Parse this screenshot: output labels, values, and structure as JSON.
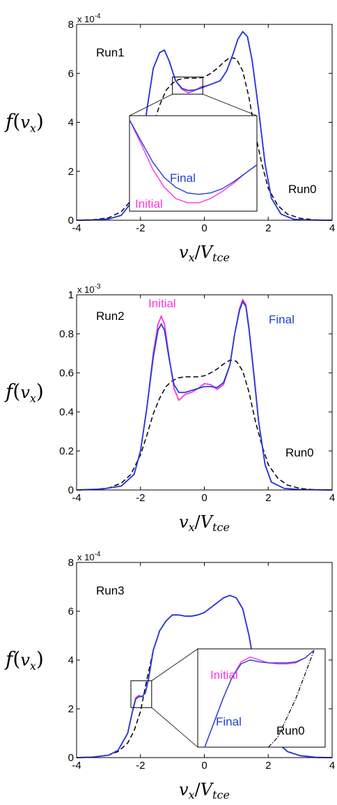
{
  "colors": {
    "final": "#1f3fd8",
    "initial": "#ff33dd",
    "run0": "#000000"
  },
  "chart_data": [
    {
      "type": "line",
      "panel_label": "Run1",
      "exponent_label": "x 10",
      "exponent_power": "-4",
      "xlabel": "v_x/V_tce",
      "ylabel": "f(v_x)",
      "xlim": [
        -4,
        4
      ],
      "ylim": [
        0,
        8
      ],
      "xticks": [
        "-4",
        "-2",
        "0",
        "2",
        "4"
      ],
      "yticks": [
        "0",
        "2",
        "4",
        "6",
        "8"
      ],
      "series": [
        {
          "name": "Run0",
          "style": "dashed",
          "x": [
            -4,
            -3.5,
            -3,
            -2.6,
            -2.3,
            -2,
            -1.8,
            -1.6,
            -1.4,
            -1.2,
            -1,
            -0.8,
            -0.6,
            -0.4,
            -0.2,
            0,
            0.2,
            0.4,
            0.6,
            0.8,
            1.0,
            1.2,
            1.4,
            1.6,
            1.8,
            2,
            2.3,
            2.6,
            3,
            3.5,
            4
          ],
          "y": [
            0,
            0.02,
            0.1,
            0.35,
            0.8,
            1.8,
            2.8,
            3.9,
            4.7,
            5.3,
            5.6,
            5.75,
            5.8,
            5.8,
            5.8,
            5.85,
            6.0,
            6.2,
            6.45,
            6.65,
            6.6,
            6.1,
            5.0,
            3.5,
            2.3,
            1.3,
            0.6,
            0.25,
            0.08,
            0.01,
            0
          ]
        },
        {
          "name": "Initial",
          "style": "solid",
          "x": [
            -4,
            -3.5,
            -3,
            -2.6,
            -2.3,
            -2,
            -1.8,
            -1.6,
            -1.4,
            -1.25,
            -1.1,
            -0.9,
            -0.7,
            -0.5,
            -0.3,
            -0.1,
            0.1,
            0.3,
            0.5,
            0.7,
            0.9,
            1.05,
            1.2,
            1.35,
            1.5,
            1.7,
            1.9,
            2.1,
            2.4,
            2.8,
            3.2,
            4
          ],
          "y": [
            0,
            0.01,
            0.05,
            0.2,
            0.7,
            2.5,
            4.5,
            6.2,
            6.85,
            6.95,
            6.5,
            5.7,
            5.35,
            5.2,
            5.3,
            5.45,
            5.5,
            5.6,
            5.7,
            6.1,
            6.8,
            7.4,
            7.7,
            7.5,
            6.5,
            4.5,
            2.3,
            0.9,
            0.25,
            0.04,
            0.01,
            0
          ]
        },
        {
          "name": "Final",
          "style": "solid",
          "x": [
            -4,
            -3.5,
            -3,
            -2.6,
            -2.3,
            -2,
            -1.8,
            -1.6,
            -1.4,
            -1.25,
            -1.1,
            -0.9,
            -0.7,
            -0.5,
            -0.3,
            -0.1,
            0.1,
            0.3,
            0.5,
            0.7,
            0.9,
            1.05,
            1.2,
            1.35,
            1.5,
            1.7,
            1.9,
            2.1,
            2.4,
            2.8,
            3.2,
            4
          ],
          "y": [
            0,
            0.01,
            0.05,
            0.2,
            0.7,
            2.5,
            4.5,
            6.2,
            6.85,
            6.95,
            6.5,
            5.7,
            5.38,
            5.3,
            5.32,
            5.4,
            5.5,
            5.6,
            5.7,
            6.1,
            6.8,
            7.4,
            7.7,
            7.5,
            6.5,
            4.5,
            2.3,
            0.9,
            0.25,
            0.04,
            0.01,
            0
          ]
        }
      ],
      "inset": {
        "zoom_box": {
          "x": [
            -1.0,
            -0.05
          ],
          "y": [
            5.15,
            5.85
          ]
        },
        "labels": [
          "Final",
          "Initial"
        ],
        "final_y": [
          5.85,
          5.7,
          5.55,
          5.44,
          5.37,
          5.33,
          5.32,
          5.33,
          5.36,
          5.41,
          5.47,
          5.53
        ],
        "initial_y": [
          5.85,
          5.68,
          5.5,
          5.37,
          5.29,
          5.26,
          5.26,
          5.29,
          5.34,
          5.4,
          5.47,
          5.53
        ]
      }
    },
    {
      "type": "line",
      "panel_label": "Run2",
      "exponent_label": "x 10",
      "exponent_power": "-3",
      "xlabel": "v_x/V_tce",
      "ylabel": "f(v_x)",
      "xlim": [
        -4,
        4
      ],
      "ylim": [
        0,
        1
      ],
      "xticks": [
        "-4",
        "-2",
        "0",
        "2",
        "4"
      ],
      "yticks": [
        "0",
        "0.2",
        "0.4",
        "0.6",
        "0.8",
        "1"
      ],
      "series": [
        {
          "name": "Run0",
          "style": "dashed",
          "x": [
            -4,
            -3.5,
            -3,
            -2.6,
            -2.3,
            -2,
            -1.8,
            -1.6,
            -1.4,
            -1.2,
            -1,
            -0.8,
            -0.6,
            -0.4,
            -0.2,
            0,
            0.2,
            0.4,
            0.6,
            0.8,
            1.0,
            1.2,
            1.4,
            1.6,
            1.8,
            2,
            2.3,
            2.6,
            3,
            3.5,
            4
          ],
          "y": [
            0,
            0.002,
            0.01,
            0.035,
            0.08,
            0.18,
            0.28,
            0.39,
            0.47,
            0.53,
            0.56,
            0.575,
            0.58,
            0.58,
            0.58,
            0.585,
            0.6,
            0.62,
            0.645,
            0.665,
            0.66,
            0.61,
            0.5,
            0.35,
            0.23,
            0.13,
            0.06,
            0.025,
            0.008,
            0.001,
            0
          ]
        },
        {
          "name": "Initial",
          "style": "solid",
          "x": [
            -4,
            -3.2,
            -2.6,
            -2.2,
            -2,
            -1.8,
            -1.6,
            -1.45,
            -1.35,
            -1.25,
            -1.1,
            -0.95,
            -0.8,
            -0.6,
            -0.4,
            -0.2,
            0,
            0.2,
            0.4,
            0.6,
            0.8,
            0.95,
            1.1,
            1.2,
            1.3,
            1.4,
            1.55,
            1.7,
            1.9,
            2.1,
            2.5,
            3,
            4
          ],
          "y": [
            0,
            0.005,
            0.02,
            0.08,
            0.2,
            0.42,
            0.7,
            0.85,
            0.89,
            0.85,
            0.68,
            0.52,
            0.46,
            0.49,
            0.5,
            0.52,
            0.545,
            0.54,
            0.515,
            0.54,
            0.64,
            0.8,
            0.93,
            0.975,
            0.95,
            0.83,
            0.6,
            0.35,
            0.13,
            0.04,
            0.008,
            0.002,
            0
          ]
        },
        {
          "name": "Final",
          "style": "solid",
          "x": [
            -4,
            -3.2,
            -2.6,
            -2.2,
            -2,
            -1.8,
            -1.6,
            -1.45,
            -1.35,
            -1.25,
            -1.1,
            -0.95,
            -0.8,
            -0.6,
            -0.4,
            -0.2,
            0,
            0.2,
            0.4,
            0.6,
            0.8,
            0.95,
            1.1,
            1.2,
            1.3,
            1.4,
            1.55,
            1.7,
            1.9,
            2.1,
            2.5,
            3,
            4
          ],
          "y": [
            0,
            0.005,
            0.02,
            0.08,
            0.2,
            0.42,
            0.68,
            0.82,
            0.85,
            0.82,
            0.67,
            0.54,
            0.5,
            0.5,
            0.51,
            0.52,
            0.53,
            0.53,
            0.525,
            0.55,
            0.64,
            0.8,
            0.92,
            0.965,
            0.94,
            0.82,
            0.59,
            0.35,
            0.13,
            0.04,
            0.008,
            0.002,
            0
          ]
        }
      ],
      "annotations": [
        "Initial",
        "Final",
        "Run0"
      ]
    },
    {
      "type": "line",
      "panel_label": "Run3",
      "exponent_label": "x 10",
      "exponent_power": "-4",
      "xlabel": "v_x/V_tce",
      "ylabel": "f(v_x)",
      "xlim": [
        -4,
        4
      ],
      "ylim": [
        0,
        8
      ],
      "xticks": [
        "-4",
        "-2",
        "0",
        "2",
        "4"
      ],
      "yticks": [
        "0",
        "2",
        "4",
        "6",
        "8"
      ],
      "series": [
        {
          "name": "Run0",
          "style": "dashed",
          "x": [
            -4,
            -3.5,
            -3,
            -2.7,
            -2.4,
            -2.2,
            -2.0,
            -1.8,
            -1.6,
            -1.4,
            -1.2,
            -1,
            -0.8,
            -0.6,
            -0.4,
            -0.2,
            0,
            0.2,
            0.4,
            0.6,
            0.8,
            1.0,
            1.2,
            1.4,
            1.6,
            1.8,
            2,
            2.3,
            2.6,
            3,
            3.5,
            4
          ],
          "y": [
            0,
            0.02,
            0.1,
            0.25,
            0.6,
            1.1,
            1.9,
            3.2,
            4.4,
            5.2,
            5.6,
            5.85,
            5.85,
            5.8,
            5.8,
            5.85,
            5.95,
            6.15,
            6.35,
            6.55,
            6.65,
            6.55,
            6.1,
            5.0,
            3.5,
            2.3,
            1.3,
            0.6,
            0.25,
            0.08,
            0.01,
            0
          ]
        },
        {
          "name": "Initial",
          "style": "solid",
          "x": [
            -4,
            -3.5,
            -3,
            -2.7,
            -2.4,
            -2.25,
            -2.15,
            -2.05,
            -1.95,
            -1.85,
            -1.75,
            -1.6,
            -1.4,
            -1.2,
            -1,
            -0.8,
            -0.6,
            -0.4,
            -0.2,
            0,
            0.2,
            0.4,
            0.6,
            0.8,
            1.0,
            1.2,
            1.4,
            1.6,
            1.8,
            2,
            2.3,
            2.6,
            3,
            3.5,
            4
          ],
          "y": [
            0,
            0.02,
            0.1,
            0.3,
            1.0,
            1.9,
            2.45,
            2.55,
            2.5,
            2.65,
            3.2,
            4.4,
            5.2,
            5.6,
            5.85,
            5.85,
            5.8,
            5.8,
            5.85,
            5.95,
            6.15,
            6.35,
            6.55,
            6.65,
            6.55,
            6.1,
            5.0,
            3.5,
            2.3,
            1.3,
            0.6,
            0.25,
            0.08,
            0.01,
            0
          ]
        },
        {
          "name": "Final",
          "style": "solid",
          "x": [
            -4,
            -3.5,
            -3,
            -2.7,
            -2.4,
            -2.25,
            -2.15,
            -2.05,
            -1.95,
            -1.85,
            -1.75,
            -1.6,
            -1.4,
            -1.2,
            -1,
            -0.8,
            -0.6,
            -0.4,
            -0.2,
            0,
            0.2,
            0.4,
            0.6,
            0.8,
            1.0,
            1.2,
            1.4,
            1.6,
            1.8,
            2,
            2.3,
            2.6,
            3,
            3.5,
            4
          ],
          "y": [
            0,
            0.02,
            0.1,
            0.3,
            1.0,
            1.9,
            2.4,
            2.5,
            2.5,
            2.65,
            3.2,
            4.4,
            5.2,
            5.6,
            5.85,
            5.85,
            5.8,
            5.8,
            5.85,
            5.95,
            6.15,
            6.35,
            6.55,
            6.65,
            6.55,
            6.1,
            5.0,
            3.5,
            2.3,
            1.3,
            0.6,
            0.25,
            0.08,
            0.01,
            0
          ]
        }
      ],
      "inset": {
        "zoom_box": {
          "x": [
            -2.3,
            -1.65
          ],
          "y": [
            2.05,
            3.15
          ]
        },
        "labels": [
          "Initial",
          "Final",
          "Run0"
        ],
        "final_y": [
          0.0,
          0.25,
          0.5,
          0.72,
          0.86,
          0.9,
          0.88,
          0.87,
          0.87,
          0.87,
          0.88,
          0.92,
          1.0
        ],
        "initial_y": [
          0.0,
          0.25,
          0.5,
          0.72,
          0.88,
          0.93,
          0.9,
          0.87,
          0.86,
          0.86,
          0.87,
          0.92,
          1.0
        ],
        "run0_y": [
          0.0,
          0.0,
          0.0,
          0.0,
          0.0,
          0.0,
          0.0,
          0.0,
          0.1,
          0.3,
          0.5,
          0.75,
          1.0
        ]
      }
    }
  ]
}
